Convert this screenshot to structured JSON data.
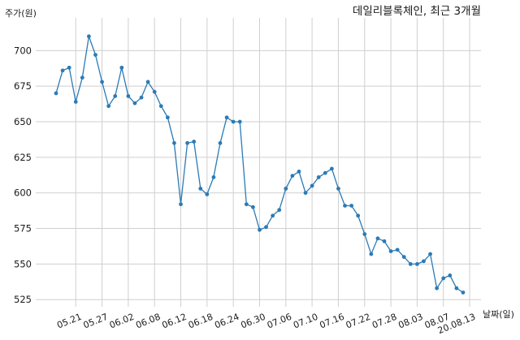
{
  "chart_data": {
    "type": "line",
    "title": "데일리블록체인, 최근 3개월",
    "xlabel": "날짜(일)",
    "ylabel": "주가(원)",
    "ylim": [
      520,
      723
    ],
    "yticks": [
      525,
      550,
      575,
      600,
      625,
      650,
      675,
      700
    ],
    "grid": true,
    "line_color": "#2b7bb5",
    "x_tick_labels": [
      "05.21",
      "05.27",
      "06.02",
      "06.08",
      "06.12",
      "06.18",
      "06.24",
      "06.30",
      "07.06",
      "07.10",
      "07.16",
      "07.22",
      "07.28",
      "08.03",
      "08.07",
      "20.08.13"
    ],
    "x_tick_index": [
      3,
      7,
      11,
      15,
      19,
      23,
      27,
      31,
      35,
      39,
      43,
      47,
      51,
      55,
      59,
      63
    ],
    "values": [
      670,
      686,
      688,
      664,
      681,
      710,
      697,
      678,
      661,
      668,
      688,
      668,
      663,
      667,
      678,
      671,
      661,
      653,
      635,
      592,
      635,
      636,
      603,
      599,
      611,
      635,
      653,
      650,
      650,
      592,
      590,
      574,
      576,
      584,
      588,
      603,
      612,
      615,
      600,
      605,
      611,
      614,
      617,
      603,
      591,
      591,
      584,
      571,
      557,
      568,
      566,
      559,
      560,
      555,
      550,
      550,
      552,
      557,
      533,
      540,
      542,
      533,
      530
    ]
  }
}
